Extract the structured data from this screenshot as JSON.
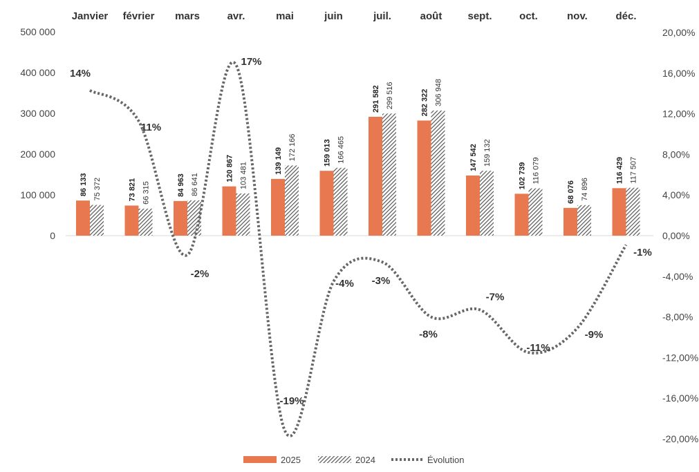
{
  "chart_data": {
    "type": "bar",
    "categories": [
      "Janvier",
      "février",
      "mars",
      "avr.",
      "mai",
      "juin",
      "juil.",
      "août",
      "sept.",
      "oct.",
      "nov.",
      "déc."
    ],
    "series": [
      {
        "name": "2025",
        "type": "bar",
        "values": [
          86133,
          73821,
          84963,
          120867,
          139149,
          159013,
          291582,
          282322,
          147542,
          102739,
          68076,
          116429
        ],
        "labels": [
          "86 133",
          "73 821",
          "84 963",
          "120 867",
          "139 149",
          "159 013",
          "291 582",
          "282 322",
          "147 542",
          "102 739",
          "68 076",
          "116 429"
        ],
        "color": "#E8784F",
        "axis": "left"
      },
      {
        "name": "2024",
        "type": "bar",
        "pattern": "diagonal-hatch",
        "values": [
          75372,
          66315,
          86641,
          103481,
          172166,
          166465,
          299516,
          306948,
          159132,
          116079,
          74896,
          117507
        ],
        "labels": [
          "75 372",
          "66 315",
          "86 641",
          "103 481",
          "172 166",
          "166 465",
          "299 516",
          "306 948",
          "159 132",
          "116 079",
          "74 896",
          "117 507"
        ],
        "color": "#555555",
        "axis": "right-of-left"
      },
      {
        "name": "Évolution",
        "type": "line",
        "style": "dotted",
        "smooth": true,
        "values": [
          14.3,
          11.3,
          -1.9,
          16.8,
          -19.2,
          -4.5,
          -2.6,
          -8.0,
          -7.3,
          -11.5,
          -9.1,
          -0.9
        ],
        "labels": [
          "14%",
          "11%",
          "-2%",
          "17%",
          "-19%",
          "-4%",
          "-3%",
          "-8%",
          "-7%",
          "-11%",
          "-9%",
          "-1%"
        ],
        "color": "#666666",
        "axis": "right"
      }
    ],
    "y_left": {
      "ylim": [
        -500000,
        500000
      ],
      "ticks": [
        0,
        100000,
        200000,
        300000,
        400000,
        500000
      ],
      "tick_labels": [
        "0",
        "100 000",
        "200 000",
        "300 000",
        "400 000",
        "500 000"
      ]
    },
    "y_right": {
      "ylim": [
        -20,
        20
      ],
      "ticks": [
        20,
        16,
        12,
        8,
        4,
        0,
        -4,
        -8,
        -12,
        -16,
        -20
      ],
      "tick_labels": [
        "20,00%",
        "16,00%",
        "12,00%",
        "8,00%",
        "4,00%",
        "0,00%",
        "-4,00%",
        "-8,00%",
        "-12,00%",
        "-16,00%",
        "-20,00%"
      ]
    },
    "category_axis_position": "top",
    "grid": false,
    "legend": {
      "position": "bottom",
      "entries": [
        "2025",
        "2024",
        "Évolution"
      ]
    },
    "title": "",
    "xlabel": "",
    "ylabel": ""
  }
}
